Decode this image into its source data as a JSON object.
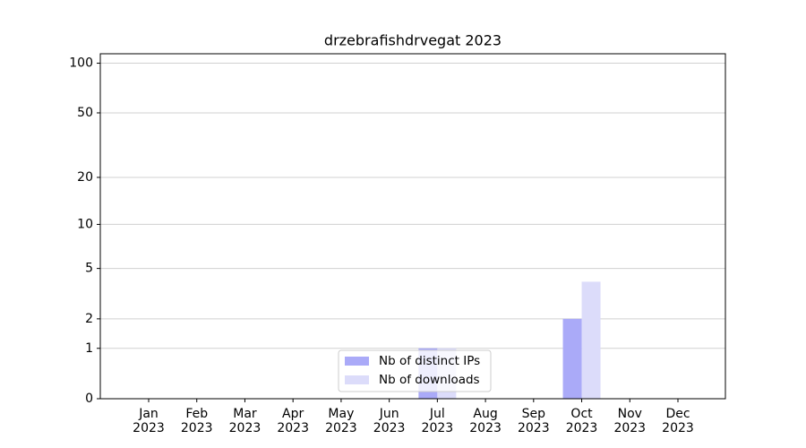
{
  "chart_data": {
    "type": "bar",
    "title": "drzebrafishdrvegat 2023",
    "categories": [
      "Jan\n2023",
      "Feb\n2023",
      "Mar\n2023",
      "Apr\n2023",
      "May\n2023",
      "Jun\n2023",
      "Jul\n2023",
      "Aug\n2023",
      "Sep\n2023",
      "Oct\n2023",
      "Nov\n2023",
      "Dec\n2023"
    ],
    "series": [
      {
        "name": "Nb of distinct IPs",
        "color": "#aaaaf8",
        "values": [
          0,
          0,
          0,
          0,
          0,
          0,
          1,
          0,
          0,
          2,
          0,
          0
        ]
      },
      {
        "name": "Nb of downloads",
        "color": "#dcdcfa",
        "values": [
          0,
          0,
          0,
          0,
          0,
          0,
          1,
          0,
          0,
          4,
          0,
          0
        ]
      }
    ],
    "ylim": [
      0,
      114
    ],
    "yticks": [
      0,
      1,
      2,
      5,
      10,
      20,
      50,
      100
    ],
    "yscale": "log1p",
    "grid": true,
    "legend": "lower center"
  }
}
